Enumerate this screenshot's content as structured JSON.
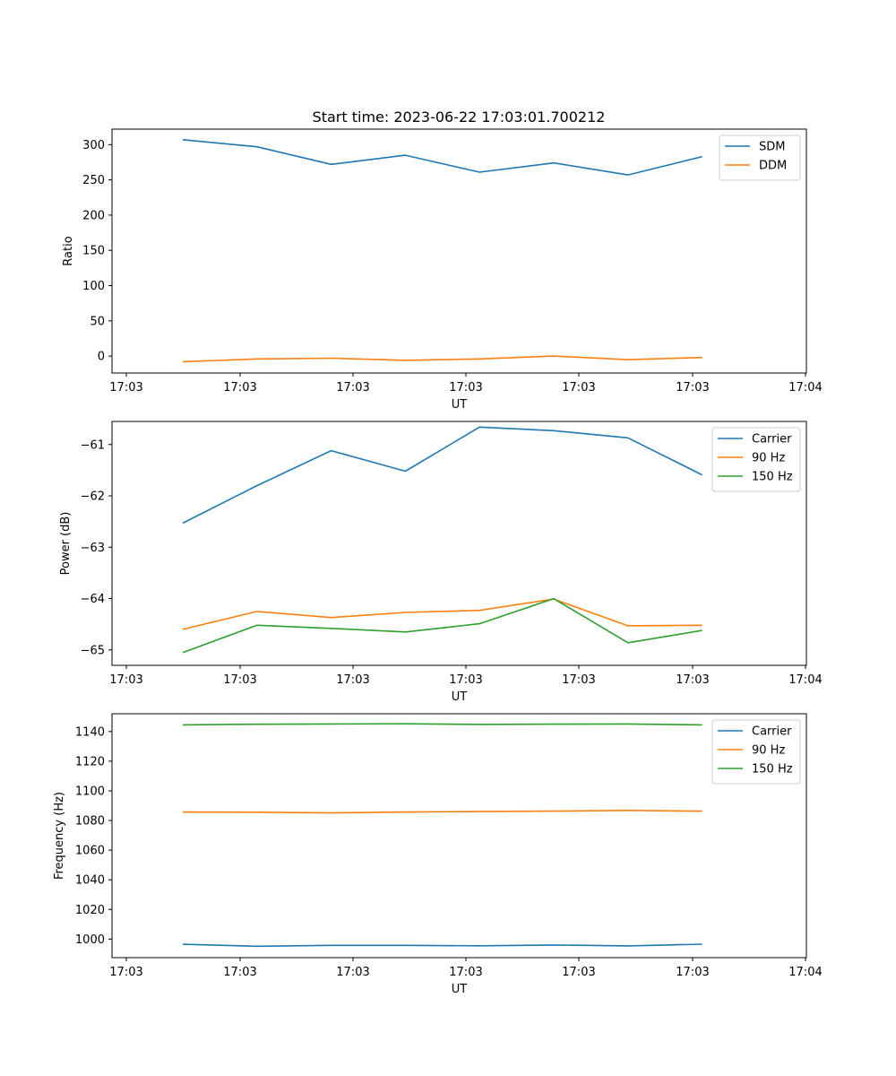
{
  "title": "Start time: 2023-06-22 17:03:01.700212",
  "chart_data": [
    {
      "type": "line",
      "xlabel": "UT",
      "ylabel": "Ratio",
      "x_tick_labels": [
        "17:03",
        "17:03",
        "17:03",
        "17:03",
        "17:03",
        "17:03",
        "17:03"
      ],
      "x_end_tick_label": "17:04",
      "yticks": [
        0,
        50,
        100,
        150,
        200,
        250,
        300
      ],
      "ylim": [
        -24,
        322
      ],
      "legend_position": "upper right",
      "series": [
        {
          "name": "SDM",
          "color": "#1f77b4",
          "values": [
            307,
            297,
            272,
            285,
            261,
            274,
            257,
            283
          ]
        },
        {
          "name": "DDM",
          "color": "#ff7f0e",
          "values": [
            -8,
            -4,
            -3,
            -6,
            -4,
            0,
            -5,
            -2
          ]
        }
      ]
    },
    {
      "type": "line",
      "xlabel": "UT",
      "ylabel": "Power (dB)",
      "x_tick_labels": [
        "17:03",
        "17:03",
        "17:03",
        "17:03",
        "17:03",
        "17:03",
        "17:03"
      ],
      "x_end_tick_label": "17:04",
      "yticks": [
        -65,
        -64,
        -63,
        -62,
        -61
      ],
      "ylim": [
        -65.3,
        -60.55
      ],
      "legend_position": "upper right",
      "series": [
        {
          "name": "Carrier",
          "color": "#1f77b4",
          "values": [
            -62.53,
            -61.8,
            -61.12,
            -61.52,
            -60.66,
            -60.73,
            -60.87,
            -61.59
          ]
        },
        {
          "name": "90 Hz",
          "color": "#ff7f0e",
          "values": [
            -64.6,
            -64.25,
            -64.37,
            -64.27,
            -64.23,
            -64.01,
            -64.53,
            -64.52
          ]
        },
        {
          "name": "150 Hz",
          "color": "#2ca02c",
          "values": [
            -65.05,
            -64.52,
            -64.58,
            -64.65,
            -64.49,
            -64.0,
            -64.86,
            -64.62
          ]
        }
      ]
    },
    {
      "type": "line",
      "xlabel": "UT",
      "ylabel": "Frequency (Hz)",
      "x_tick_labels": [
        "17:03",
        "17:03",
        "17:03",
        "17:03",
        "17:03",
        "17:03",
        "17:03"
      ],
      "x_end_tick_label": "17:04",
      "yticks": [
        1000,
        1020,
        1040,
        1060,
        1080,
        1100,
        1120,
        1140
      ],
      "ylim": [
        987.5,
        1152
      ],
      "legend_position": "upper right",
      "series": [
        {
          "name": "Carrier",
          "color": "#1f77b4",
          "values": [
            996.5,
            995.2,
            995.8,
            995.8,
            995.5,
            996.0,
            995.4,
            996.6
          ]
        },
        {
          "name": "90 Hz",
          "color": "#ff7f0e",
          "values": [
            1085.7,
            1085.6,
            1085.1,
            1085.7,
            1086.0,
            1086.3,
            1086.8,
            1086.3
          ]
        },
        {
          "name": "150 Hz",
          "color": "#2ca02c",
          "values": [
            1144.5,
            1144.9,
            1145.1,
            1145.2,
            1144.8,
            1145.0,
            1145.1,
            1144.5
          ]
        }
      ]
    }
  ]
}
